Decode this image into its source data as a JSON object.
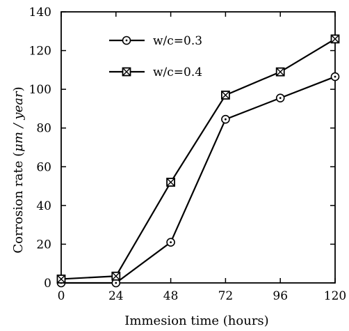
{
  "chart_data": {
    "type": "line",
    "title": "",
    "xlabel": "Immesion time (hours)",
    "ylabel_prefix": "Corrosion rate (",
    "ylabel_unit": "μm / year",
    "ylabel_suffix": ")",
    "x": [
      0,
      24,
      48,
      72,
      96,
      120
    ],
    "xlim": [
      0,
      120
    ],
    "ylim": [
      0,
      140
    ],
    "xticks": [
      0,
      24,
      48,
      72,
      96,
      120
    ],
    "yticks": [
      0,
      20,
      40,
      60,
      80,
      100,
      120,
      140
    ],
    "grid": false,
    "legend_position": "top-left",
    "series": [
      {
        "name": "w/c=0.3",
        "marker": "circle-dot",
        "values": [
          0,
          0,
          21,
          84.5,
          95.5,
          106.5
        ]
      },
      {
        "name": "w/c=0.4",
        "marker": "square-x",
        "values": [
          2,
          3.5,
          52,
          97,
          109,
          126
        ]
      }
    ],
    "colors": {
      "line": "#000000",
      "background": "#ffffff"
    }
  }
}
